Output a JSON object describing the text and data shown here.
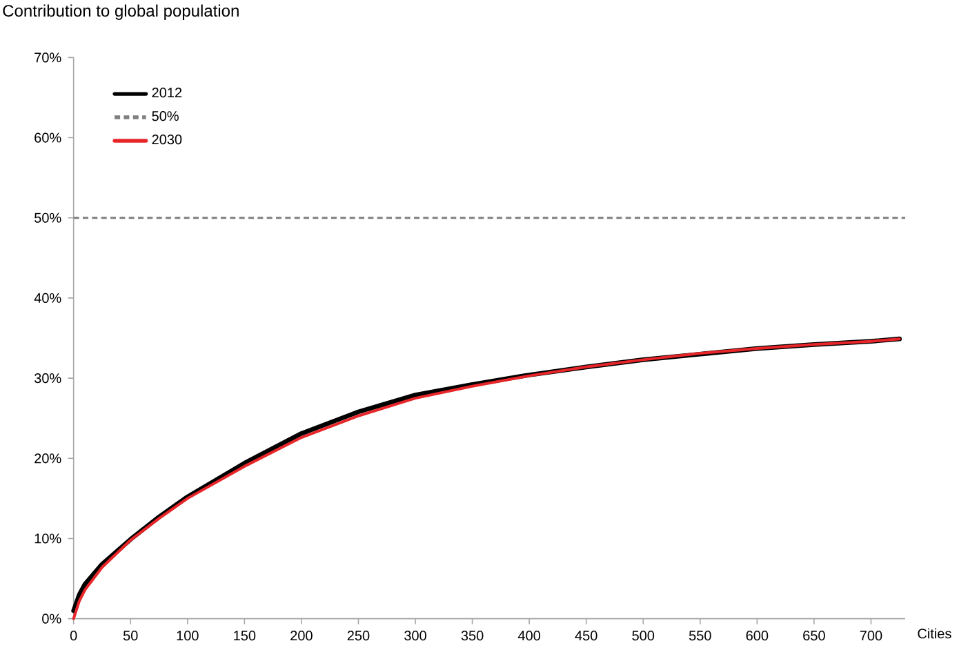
{
  "chart_data": {
    "type": "line",
    "title": "Contribution to global population",
    "xlabel": "Cities",
    "x": [
      0,
      5,
      10,
      25,
      50,
      75,
      100,
      150,
      200,
      250,
      300,
      350,
      400,
      450,
      500,
      550,
      600,
      650,
      700,
      725
    ],
    "series": [
      {
        "name": "2012",
        "color": "#000000",
        "values": [
          1.0,
          3.0,
          4.3,
          6.8,
          9.9,
          12.7,
          15.2,
          19.4,
          23.1,
          25.8,
          27.9,
          29.2,
          30.4,
          31.4,
          32.3,
          33.0,
          33.7,
          34.2,
          34.6,
          34.9
        ]
      },
      {
        "name": "2030",
        "color": "#e8262a",
        "values": [
          0.0,
          2.2,
          3.6,
          6.4,
          9.8,
          12.5,
          15.0,
          19.0,
          22.6,
          25.3,
          27.5,
          29.0,
          30.3,
          31.4,
          32.3,
          33.1,
          33.7,
          34.2,
          34.6,
          34.9
        ]
      }
    ],
    "ref_lines": [
      {
        "axis": "y",
        "value": 50,
        "label": "50%",
        "color": "#7f7f7f",
        "line_style": "dashed"
      }
    ],
    "xlim": [
      0,
      730
    ],
    "ylim": [
      0,
      70
    ],
    "xticks": [
      0,
      50,
      100,
      150,
      200,
      250,
      300,
      350,
      400,
      450,
      500,
      550,
      600,
      650,
      700
    ],
    "yticks": [
      {
        "value": 0,
        "label": "0%"
      },
      {
        "value": 10,
        "label": "10%"
      },
      {
        "value": 20,
        "label": "20%"
      },
      {
        "value": 30,
        "label": "30%"
      },
      {
        "value": 40,
        "label": "40%"
      },
      {
        "value": 50,
        "label": "50%"
      },
      {
        "value": 60,
        "label": "60%"
      },
      {
        "value": 70,
        "label": "70%"
      }
    ],
    "grid": false,
    "legend": "top left",
    "marker": "none",
    "line_style": "solid"
  }
}
